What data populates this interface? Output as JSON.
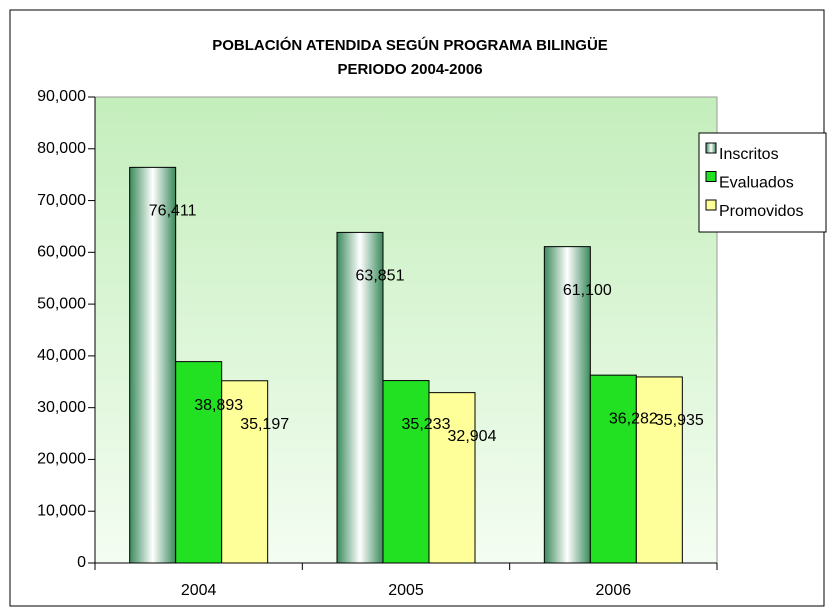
{
  "chart_data": {
    "type": "bar",
    "title": "POBLACIÓN ATENDIDA SEGÚN PROGRAMA BILINGÜE",
    "subtitle": "PERIODO 2004-2006",
    "categories": [
      "2004",
      "2005",
      "2006"
    ],
    "series": [
      {
        "name": "Inscritos",
        "color": "#3a8a5c",
        "values": [
          76411,
          63851,
          61100
        ],
        "value_labels": [
          "76,411",
          "63,851",
          "61,100"
        ]
      },
      {
        "name": "Evaluados",
        "color": "#22e022",
        "values": [
          38893,
          35233,
          36282
        ],
        "value_labels": [
          "38,893",
          "35,233",
          "36,282"
        ]
      },
      {
        "name": "Promovidos",
        "color": "#ffff99",
        "values": [
          35197,
          32904,
          35935
        ],
        "value_labels": [
          "35,197",
          "32,904",
          "35,935"
        ]
      }
    ],
    "ylim": [
      0,
      90000
    ],
    "yticks": [
      0,
      {
        "value": 10000,
        "label": "10,000"
      },
      {
        "value": 20000,
        "label": "20,000"
      },
      {
        "value": 30000,
        "label": "30,000"
      },
      {
        "value": 40000,
        "label": "40,000"
      },
      {
        "value": 50000,
        "label": "50,000"
      },
      {
        "value": 60000,
        "label": "60,000"
      },
      {
        "value": 70000,
        "label": "70,000"
      },
      {
        "value": 80000,
        "label": "80,000"
      },
      {
        "value": 90000,
        "label": "90,000"
      }
    ],
    "legend": "right"
  }
}
